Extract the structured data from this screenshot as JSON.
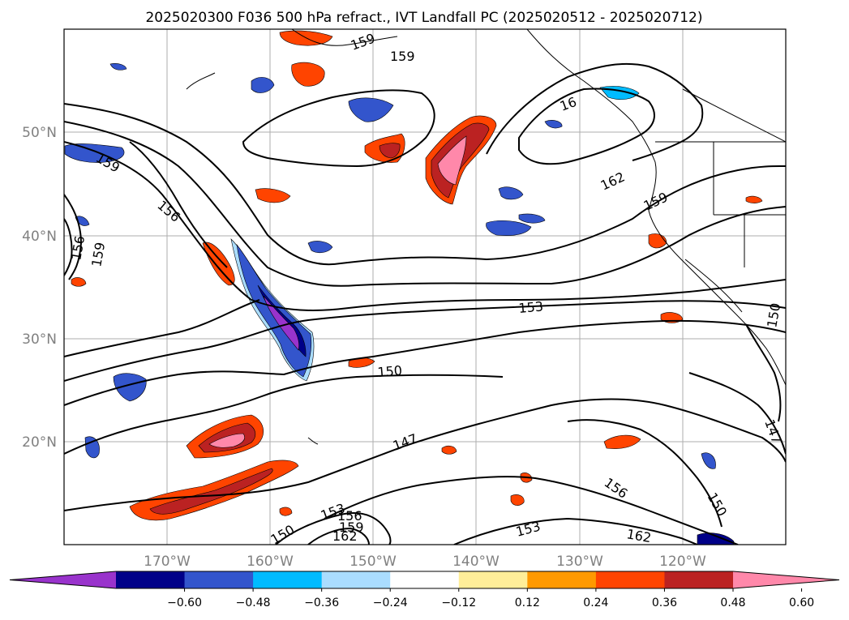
{
  "title": "2025020300 F036 500 hPa refract., IVT Landfall PC (2025020512 - 2025020712)",
  "lat_labels": [
    "50°N",
    "40°N",
    "30°N",
    "20°N"
  ],
  "lon_labels": [
    "170°W",
    "160°W",
    "150°W",
    "140°W",
    "130°W",
    "120°W"
  ],
  "colorbar": {
    "ticks": [
      "−0.60",
      "−0.48",
      "−0.36",
      "−0.24",
      "−0.12",
      "0.12",
      "0.24",
      "0.36",
      "0.48",
      "0.60"
    ],
    "colors": [
      "#9933cc",
      "#000088",
      "#3355cc",
      "#00bbff",
      "#aaddff",
      "#ffffff",
      "#ffee99",
      "#ff9900",
      "#ff4400",
      "#bb2222",
      "#ff88aa"
    ]
  },
  "contour_labels": [
    "159",
    "159",
    "16",
    "159",
    "156",
    "156",
    "159",
    "162",
    "159",
    "153",
    "150",
    "147",
    "150",
    "147",
    "156",
    "150",
    "153",
    "162",
    "153",
    "156",
    "159",
    "162",
    "150"
  ]
}
